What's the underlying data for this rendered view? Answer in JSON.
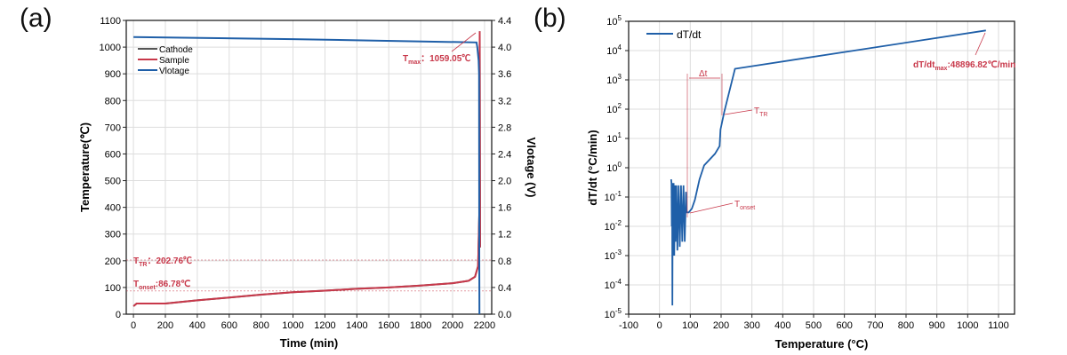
{
  "chart_data": [
    {
      "type": "line",
      "panel_label": "(a)",
      "xlabel": "Time (min)",
      "ylabel": "Temperature(℃)",
      "y2label": "Vlotage (V)",
      "xlim": [
        -45,
        2245
      ],
      "ylim": [
        0,
        1100
      ],
      "y2lim": [
        0.0,
        4.4
      ],
      "xticks": [
        "0",
        "200",
        "400",
        "600",
        "800",
        "1000",
        "1200",
        "1400",
        "1600",
        "1800",
        "2000",
        "2200"
      ],
      "yticks": [
        "0",
        "100",
        "200",
        "300",
        "400",
        "500",
        "600",
        "700",
        "800",
        "900",
        "1000",
        "1100"
      ],
      "y2ticks": [
        "0.0",
        "0.4",
        "0.8",
        "1.2",
        "1.6",
        "2.0",
        "2.4",
        "2.8",
        "3.2",
        "3.6",
        "4.0",
        "4.4"
      ],
      "grid": true,
      "legend": "top-left",
      "series": [
        {
          "name": "Cathode",
          "axis": "left",
          "color": "#555555",
          "x": [
            0,
            20,
            200,
            400,
            600,
            800,
            1000,
            1200,
            1400,
            1600,
            1800,
            2000,
            2100,
            2140,
            2160,
            2168,
            2170,
            2172
          ],
          "y": [
            30,
            40,
            40,
            52,
            62,
            73,
            82,
            88,
            95,
            100,
            107,
            116,
            125,
            140,
            180,
            400,
            1059.05,
            250
          ]
        },
        {
          "name": "Sample",
          "axis": "left",
          "color": "#c8384a",
          "x": [
            0,
            20,
            200,
            400,
            600,
            800,
            1000,
            1200,
            1400,
            1600,
            1800,
            2000,
            2100,
            2140,
            2160,
            2168,
            2170,
            2172
          ],
          "y": [
            30,
            40,
            40,
            52,
            62,
            73,
            82,
            88,
            95,
            100,
            107,
            116,
            125,
            140,
            180,
            400,
            1059.05,
            250
          ]
        },
        {
          "name": "Vlotage",
          "axis": "right",
          "color": "#1f5fa8",
          "x": [
            0,
            1000,
            2150,
            2155,
            2163,
            2166,
            2167,
            2168
          ],
          "y": [
            4.15,
            4.12,
            4.07,
            4.0,
            3.8,
            3.6,
            1.0,
            0.0
          ]
        }
      ],
      "annotations": {
        "tmax": {
          "T": "T",
          "sub": "max",
          "text": "：1059.05℃"
        },
        "ttr": {
          "T": "T",
          "sub": "TR",
          "text": "：202.76℃",
          "value": 202.76
        },
        "tonset": {
          "T": "T",
          "sub": "onset",
          "text": ":86.78℃",
          "value": 86.78
        }
      }
    },
    {
      "type": "line",
      "panel_label": "(b)",
      "xlabel": "Temperature (°C)",
      "ylabel": "dT/dt (°C/min)",
      "xlim": [
        -100,
        1152
      ],
      "ylim": [
        1e-05,
        100000.0
      ],
      "yscale": "log",
      "xticks": [
        "-100",
        "0",
        "100",
        "200",
        "300",
        "400",
        "500",
        "600",
        "700",
        "800",
        "900",
        "1000",
        "1100"
      ],
      "yticks_exp": [
        "-5",
        "-4",
        "-3",
        "-2",
        "-1",
        "0",
        "1",
        "2",
        "3",
        "4",
        "5"
      ],
      "grid": true,
      "legend": "top-left",
      "series": [
        {
          "name": "dT/dt",
          "color": "#1f5fa8",
          "x": [
            38,
            39,
            40,
            41,
            42,
            43,
            44,
            46,
            48,
            50,
            52,
            55,
            58,
            62,
            66,
            70,
            74,
            78,
            82,
            86,
            88,
            95,
            105,
            115,
            130,
            145,
            180,
            195,
            198,
            210,
            245,
            1059
          ],
          "y": [
            0.4,
            0.3,
            0.01,
            0.3,
            2e-05,
            0.3,
            0.001,
            0.3,
            0.001,
            0.25,
            0.003,
            0.25,
            0.0015,
            0.25,
            0.002,
            0.25,
            0.003,
            0.25,
            0.003,
            0.15,
            0.03,
            0.03,
            0.04,
            0.08,
            0.4,
            1.2,
            3,
            5.5,
            20,
            80,
            2400,
            48896.82
          ]
        }
      ],
      "annotations": {
        "max": {
          "T": "dT/dt",
          "sub": "max",
          "text": ":48896.82℃/min"
        },
        "ttr": {
          "T": "T",
          "sub": "TR"
        },
        "tonset": {
          "T": "T",
          "sub": "onset"
        },
        "delta": "Δt"
      }
    }
  ]
}
